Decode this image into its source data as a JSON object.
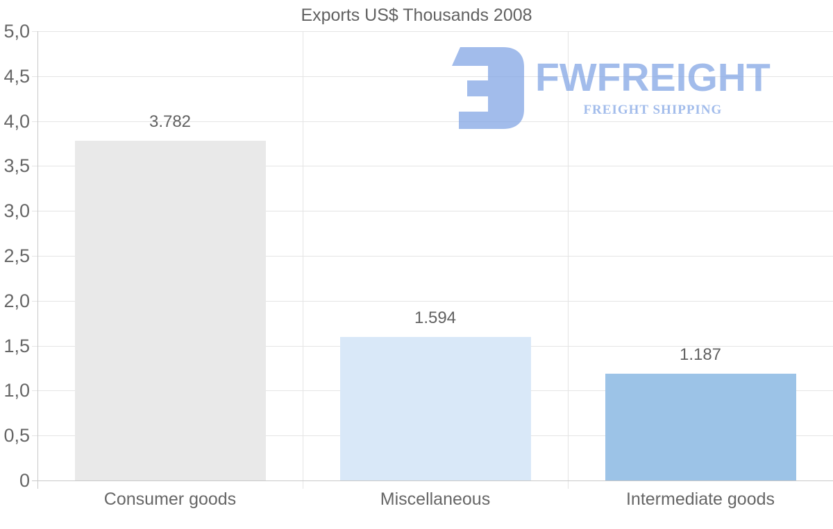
{
  "title": "Exports US$ Thousands 2008",
  "watermark": {
    "brand": "FWFREIGHT",
    "tagline": "FREIGHT SHIPPING",
    "color": "#7fa3e4"
  },
  "colors": {
    "background": "#ffffff",
    "text": "#616161",
    "tick_text": "#666666",
    "grid": "#e4e4e4",
    "axis": "#c9c9c9"
  },
  "chart_data": {
    "type": "bar",
    "title": "Exports US$ Thousands 2008",
    "categories": [
      "Consumer goods",
      "Miscellaneous",
      "Intermediate goods"
    ],
    "values": [
      3.782,
      1.594,
      1.187
    ],
    "value_labels": [
      "3.782",
      "1.594",
      "1.187"
    ],
    "bar_colors": [
      "#e9e9e9",
      "#d9e8f8",
      "#9cc3e7"
    ],
    "ylim": [
      0,
      5
    ],
    "ytick_step": 0.5,
    "ytick_labels": [
      "0",
      "0,5",
      "1,0",
      "1,5",
      "2,0",
      "2,5",
      "3,0",
      "3,5",
      "4,0",
      "4,5",
      "5,0"
    ],
    "grid": true,
    "legend": "none",
    "xlabel": "",
    "ylabel": ""
  }
}
